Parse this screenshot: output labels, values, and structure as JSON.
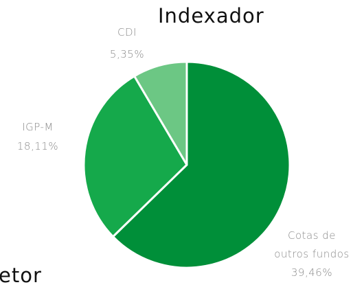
{
  "chart_data": {
    "type": "pie",
    "title": "Indexador",
    "categories": [
      "Cotas de outros fundos",
      "IGP-M",
      "CDI"
    ],
    "values": [
      39.46,
      18.11,
      5.35
    ],
    "value_labels": [
      "39,46%",
      "18,11%",
      "5,35%"
    ],
    "colors": [
      "#008f39",
      "#15a94b",
      "#6cc784"
    ]
  },
  "next_title": "etor"
}
